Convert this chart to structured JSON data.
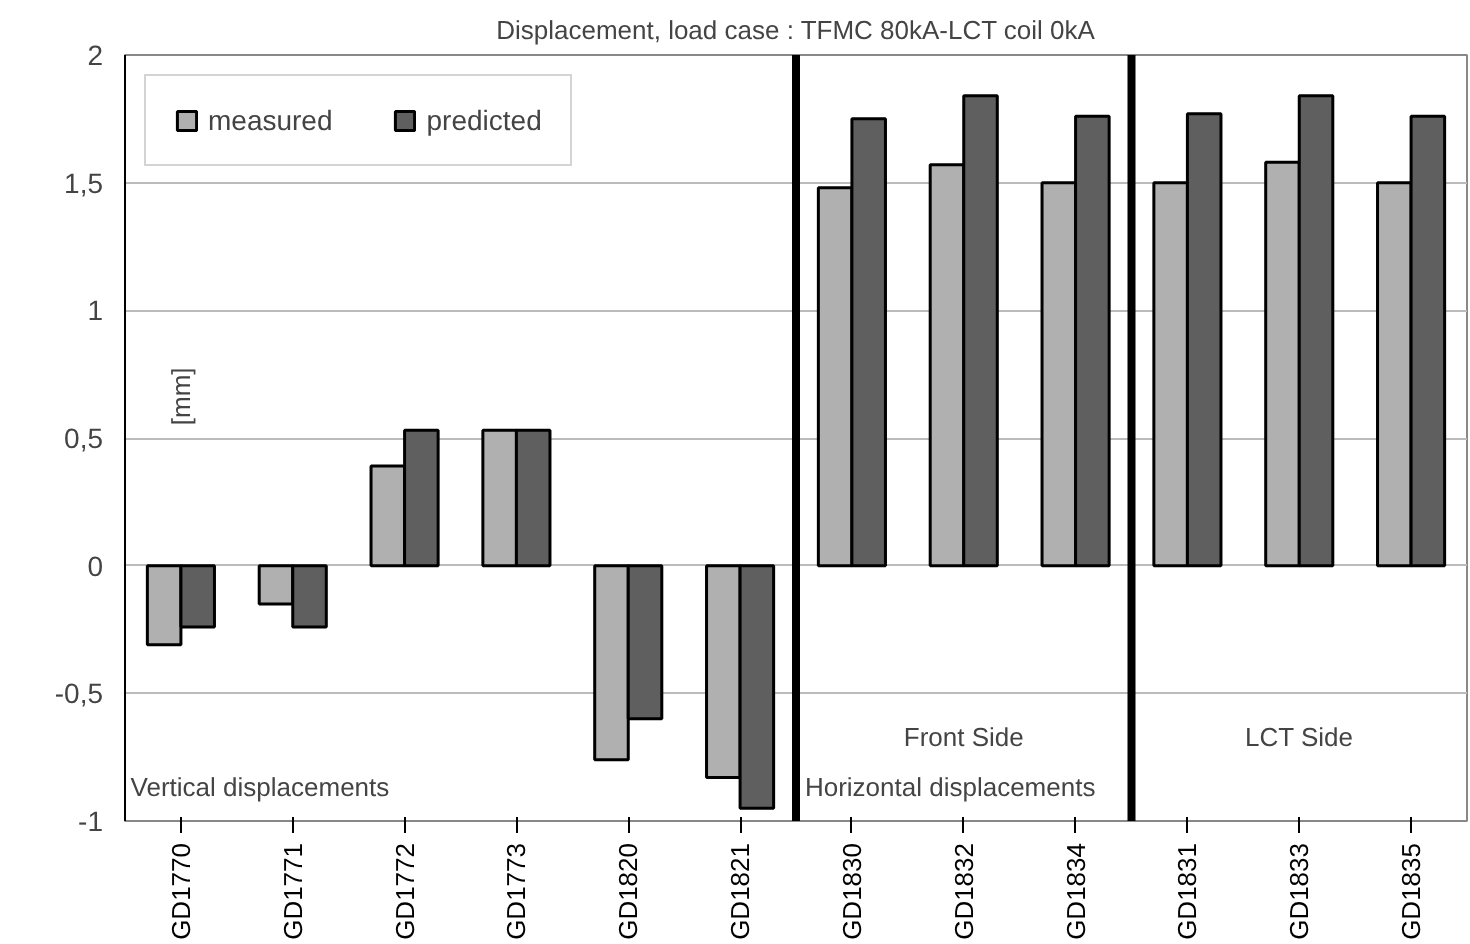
{
  "chart_data": {
    "type": "bar",
    "title": "Displacement, load case : TFMC 80kA-LCT coil 0kA",
    "ylabel": "[mm]",
    "categories": [
      "GD1770",
      "GD1771",
      "GD1772",
      "GD1773",
      "GD1820",
      "GD1821",
      "GD1830",
      "GD1832",
      "GD1834",
      "GD1831",
      "GD1833",
      "GD1835"
    ],
    "series": [
      {
        "name": "measured",
        "color": "#b0b0b0",
        "values": [
          -0.31,
          -0.15,
          0.39,
          0.53,
          -0.76,
          -0.83,
          1.48,
          1.57,
          1.5,
          1.5,
          1.58,
          1.5
        ]
      },
      {
        "name": "predicted",
        "color": "#5f5f5f",
        "values": [
          -0.24,
          -0.24,
          0.53,
          0.53,
          -0.6,
          -0.95,
          1.75,
          1.84,
          1.76,
          1.77,
          1.84,
          1.76
        ]
      }
    ],
    "ylim": [
      -1,
      2
    ],
    "yticks": [
      {
        "value": -1,
        "label": "-1"
      },
      {
        "value": -0.5,
        "label": "-0,5"
      },
      {
        "value": 0,
        "label": "0"
      },
      {
        "value": 0.5,
        "label": "0,5"
      },
      {
        "value": 1,
        "label": "1"
      },
      {
        "value": 1.5,
        "label": "1,5"
      },
      {
        "value": 2,
        "label": "2"
      }
    ],
    "grid": "y",
    "legend": "top left",
    "annotations": [
      "Vertical displacements",
      "Horizontal displacements",
      "Front Side",
      "LCT Side"
    ]
  }
}
